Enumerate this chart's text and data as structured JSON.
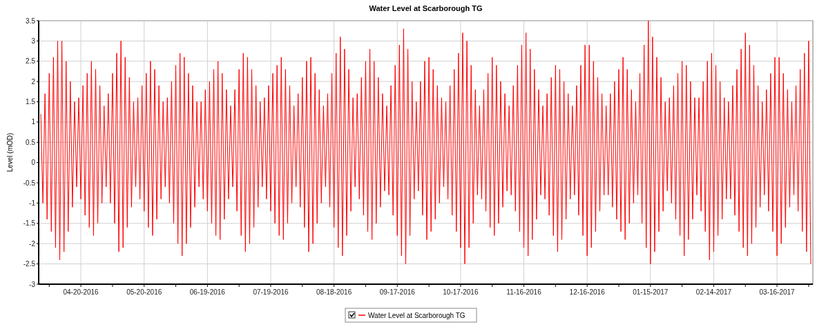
{
  "chart_data": {
    "type": "line",
    "title": "Water Level at Scarborough TG",
    "ylabel": "Level (mOD)",
    "xlim": [
      "2016-03-31",
      "2017-04-02"
    ],
    "ylim": [
      -3,
      3.5
    ],
    "yticks": [
      -3,
      -2.5,
      -2,
      -1.5,
      -1,
      -0.5,
      0,
      0.5,
      1,
      1.5,
      2,
      2.5,
      3,
      3.5
    ],
    "xticks": [
      {
        "value": "2016-04-05",
        "label": null
      },
      {
        "value": "2016-04-20",
        "label": "04-20-2016"
      },
      {
        "value": "2016-05-05",
        "label": null
      },
      {
        "value": "2016-05-20",
        "label": "05-20-2016"
      },
      {
        "value": "2016-06-04",
        "label": null
      },
      {
        "value": "2016-06-19",
        "label": "06-19-2016"
      },
      {
        "value": "2016-07-04",
        "label": null
      },
      {
        "value": "2016-07-19",
        "label": "07-19-2016"
      },
      {
        "value": "2016-08-03",
        "label": null
      },
      {
        "value": "2016-08-18",
        "label": "08-18-2016"
      },
      {
        "value": "2016-09-02",
        "label": null
      },
      {
        "value": "2016-09-17",
        "label": "09-17-2016"
      },
      {
        "value": "2016-10-02",
        "label": null
      },
      {
        "value": "2016-10-17",
        "label": "10-17-2016"
      },
      {
        "value": "2016-11-01",
        "label": null
      },
      {
        "value": "2016-11-16",
        "label": "11-16-2016"
      },
      {
        "value": "2016-12-01",
        "label": null
      },
      {
        "value": "2016-12-16",
        "label": "12-16-2016"
      },
      {
        "value": "2016-12-31",
        "label": null
      },
      {
        "value": "2017-01-15",
        "label": "01-15-2017"
      },
      {
        "value": "2017-01-30",
        "label": null
      },
      {
        "value": "2017-02-14",
        "label": "02-14-2017"
      },
      {
        "value": "2017-03-01",
        "label": null
      },
      {
        "value": "2017-03-16",
        "label": "03-16-2017"
      },
      {
        "value": "2017-03-31",
        "label": null
      }
    ],
    "grid": true,
    "legend": "bottom",
    "marker": "none",
    "line_style": "solid",
    "x": [
      "2016-04-01",
      "2016-04-02",
      "2016-04-03",
      "2016-04-04",
      "2016-04-05",
      "2016-04-06",
      "2016-04-07",
      "2016-04-08",
      "2016-04-09",
      "2016-04-10",
      "2016-04-11",
      "2016-04-12",
      "2016-04-13",
      "2016-04-14",
      "2016-04-15",
      "2016-04-16",
      "2016-04-17",
      "2016-04-18",
      "2016-04-19",
      "2016-04-20",
      "2016-04-21",
      "2016-04-22",
      "2016-04-23",
      "2016-04-24",
      "2016-04-25",
      "2016-04-26",
      "2016-04-27",
      "2016-04-28",
      "2016-04-29",
      "2016-04-30",
      "2016-05-01",
      "2016-05-02",
      "2016-05-03",
      "2016-05-04",
      "2016-05-05",
      "2016-05-06",
      "2016-05-07",
      "2016-05-08",
      "2016-05-09",
      "2016-05-10",
      "2016-05-11",
      "2016-05-12",
      "2016-05-13",
      "2016-05-14",
      "2016-05-15",
      "2016-05-16",
      "2016-05-17",
      "2016-05-18",
      "2016-05-19",
      "2016-05-20",
      "2016-05-21",
      "2016-05-22",
      "2016-05-23",
      "2016-05-24",
      "2016-05-25",
      "2016-05-26",
      "2016-05-27",
      "2016-05-28",
      "2016-05-29",
      "2016-05-30",
      "2016-05-31",
      "2016-06-01",
      "2016-06-02",
      "2016-06-03",
      "2016-06-04",
      "2016-06-05",
      "2016-06-06",
      "2016-06-07",
      "2016-06-08",
      "2016-06-09",
      "2016-06-10",
      "2016-06-11",
      "2016-06-12",
      "2016-06-13",
      "2016-06-14",
      "2016-06-15",
      "2016-06-16",
      "2016-06-17",
      "2016-06-18",
      "2016-06-19",
      "2016-06-20",
      "2016-06-21",
      "2016-06-22",
      "2016-06-23",
      "2016-06-24",
      "2016-06-25",
      "2016-06-26",
      "2016-06-27",
      "2016-06-28",
      "2016-06-29",
      "2016-06-30",
      "2016-07-01",
      "2016-07-02",
      "2016-07-03",
      "2016-07-04",
      "2016-07-05",
      "2016-07-06",
      "2016-07-07",
      "2016-07-08",
      "2016-07-09",
      "2016-07-10",
      "2016-07-11",
      "2016-07-12",
      "2016-07-13",
      "2016-07-14",
      "2016-07-15",
      "2016-07-16",
      "2016-07-17",
      "2016-07-18",
      "2016-07-19",
      "2016-07-20",
      "2016-07-21",
      "2016-07-22",
      "2016-07-23",
      "2016-07-24",
      "2016-07-25",
      "2016-07-26",
      "2016-07-27",
      "2016-07-28",
      "2016-07-29",
      "2016-07-30",
      "2016-07-31",
      "2016-08-01",
      "2016-08-02",
      "2016-08-03",
      "2016-08-04",
      "2016-08-05",
      "2016-08-06",
      "2016-08-07",
      "2016-08-08",
      "2016-08-09",
      "2016-08-10",
      "2016-08-11",
      "2016-08-12",
      "2016-08-13",
      "2016-08-14",
      "2016-08-15",
      "2016-08-16",
      "2016-08-17",
      "2016-08-18",
      "2016-08-19",
      "2016-08-20",
      "2016-08-21",
      "2016-08-22",
      "2016-08-23",
      "2016-08-24",
      "2016-08-25",
      "2016-08-26",
      "2016-08-27",
      "2016-08-28",
      "2016-08-29",
      "2016-08-30",
      "2016-08-31",
      "2016-09-01",
      "2016-09-02",
      "2016-09-03",
      "2016-09-04",
      "2016-09-05",
      "2016-09-06",
      "2016-09-07",
      "2016-09-08",
      "2016-09-09",
      "2016-09-10",
      "2016-09-11",
      "2016-09-12",
      "2016-09-13",
      "2016-09-14",
      "2016-09-15",
      "2016-09-16",
      "2016-09-17",
      "2016-09-18",
      "2016-09-19",
      "2016-09-20",
      "2016-09-21",
      "2016-09-22",
      "2016-09-23",
      "2016-09-24",
      "2016-09-25",
      "2016-09-26",
      "2016-09-27",
      "2016-09-28",
      "2016-09-29",
      "2016-09-30",
      "2016-10-01",
      "2016-10-02",
      "2016-10-03",
      "2016-10-04",
      "2016-10-05",
      "2016-10-06",
      "2016-10-07",
      "2016-10-08",
      "2016-10-09",
      "2016-10-10",
      "2016-10-11",
      "2016-10-12",
      "2016-10-13",
      "2016-10-14",
      "2016-10-15",
      "2016-10-16",
      "2016-10-17",
      "2016-10-18",
      "2016-10-19",
      "2016-10-20",
      "2016-10-21",
      "2016-10-22",
      "2016-10-23",
      "2016-10-24",
      "2016-10-25",
      "2016-10-26",
      "2016-10-27",
      "2016-10-28",
      "2016-10-29",
      "2016-10-30",
      "2016-10-31",
      "2016-11-01",
      "2016-11-02",
      "2016-11-03",
      "2016-11-04",
      "2016-11-05",
      "2016-11-06",
      "2016-11-07",
      "2016-11-08",
      "2016-11-09",
      "2016-11-10",
      "2016-11-11",
      "2016-11-12",
      "2016-11-13",
      "2016-11-14",
      "2016-11-15",
      "2016-11-16",
      "2016-11-17",
      "2016-11-18",
      "2016-11-19",
      "2016-11-20",
      "2016-11-21",
      "2016-11-22",
      "2016-11-23",
      "2016-11-24",
      "2016-11-25",
      "2016-11-26",
      "2016-11-27",
      "2016-11-28",
      "2016-11-29",
      "2016-11-30",
      "2016-12-01",
      "2016-12-02",
      "2016-12-03",
      "2016-12-04",
      "2016-12-05",
      "2016-12-06",
      "2016-12-07",
      "2016-12-08",
      "2016-12-09",
      "2016-12-10",
      "2016-12-11",
      "2016-12-12",
      "2016-12-13",
      "2016-12-14",
      "2016-12-15",
      "2016-12-16",
      "2016-12-17",
      "2016-12-18",
      "2016-12-19",
      "2016-12-20",
      "2016-12-21",
      "2016-12-22",
      "2016-12-23",
      "2016-12-24",
      "2016-12-25",
      "2016-12-26",
      "2016-12-27",
      "2016-12-28",
      "2016-12-29",
      "2016-12-30",
      "2016-12-31",
      "2017-01-01",
      "2017-01-02",
      "2017-01-03",
      "2017-01-04",
      "2017-01-05",
      "2017-01-06",
      "2017-01-07",
      "2017-01-08",
      "2017-01-09",
      "2017-01-10",
      "2017-01-11",
      "2017-01-12",
      "2017-01-13",
      "2017-01-14",
      "2017-01-15",
      "2017-01-16",
      "2017-01-17",
      "2017-01-18",
      "2017-01-19",
      "2017-01-20",
      "2017-01-21",
      "2017-01-22",
      "2017-01-23",
      "2017-01-24",
      "2017-01-25",
      "2017-01-26",
      "2017-01-27",
      "2017-01-28",
      "2017-01-29",
      "2017-01-30",
      "2017-01-31",
      "2017-02-01",
      "2017-02-02",
      "2017-02-03",
      "2017-02-04",
      "2017-02-05",
      "2017-02-06",
      "2017-02-07",
      "2017-02-08",
      "2017-02-09",
      "2017-02-10",
      "2017-02-11",
      "2017-02-12",
      "2017-02-13",
      "2017-02-14",
      "2017-02-15",
      "2017-02-16",
      "2017-02-17",
      "2017-02-18",
      "2017-02-19",
      "2017-02-20",
      "2017-02-21",
      "2017-02-22",
      "2017-02-23",
      "2017-02-24",
      "2017-02-25",
      "2017-02-26",
      "2017-02-27",
      "2017-02-28",
      "2017-03-01",
      "2017-03-02",
      "2017-03-03",
      "2017-03-04",
      "2017-03-05",
      "2017-03-06",
      "2017-03-07",
      "2017-03-08",
      "2017-03-09",
      "2017-03-10",
      "2017-03-11",
      "2017-03-12",
      "2017-03-13",
      "2017-03-14",
      "2017-03-15",
      "2017-03-16",
      "2017-03-17",
      "2017-03-18",
      "2017-03-19",
      "2017-03-20",
      "2017-03-21",
      "2017-03-22",
      "2017-03-23",
      "2017-03-24",
      "2017-03-25",
      "2017-03-26",
      "2017-03-27",
      "2017-03-28",
      "2017-03-29",
      "2017-03-30",
      "2017-03-31",
      "2017-04-01"
    ],
    "series": [
      {
        "name": "Water Level at Scarborough TG",
        "color": "#ff0000",
        "values": [
          1.2,
          -1.0,
          1.7,
          -1.4,
          2.2,
          -1.7,
          2.6,
          -2.1,
          3.0,
          -2.4,
          3.0,
          -2.2,
          2.5,
          -1.7,
          2.0,
          -1.1,
          1.5,
          -0.6,
          1.6,
          -0.9,
          1.9,
          -1.3,
          2.2,
          -1.6,
          2.5,
          -1.8,
          2.3,
          -1.5,
          1.9,
          -1.0,
          1.4,
          -0.6,
          1.7,
          -1.0,
          2.2,
          -1.5,
          2.7,
          -2.2,
          3.0,
          -2.1,
          2.6,
          -1.6,
          2.1,
          -1.1,
          1.5,
          -0.6,
          1.6,
          -0.9,
          1.9,
          -1.2,
          2.2,
          -1.6,
          2.5,
          -1.8,
          2.3,
          -1.4,
          1.9,
          -0.9,
          1.5,
          -0.6,
          1.6,
          -1.0,
          2.0,
          -1.5,
          2.4,
          -2.0,
          2.7,
          -2.3,
          2.6,
          -2.0,
          2.2,
          -1.6,
          1.9,
          -1.1,
          1.5,
          -0.6,
          1.5,
          -0.9,
          1.8,
          -1.2,
          2.0,
          -1.5,
          2.3,
          -1.8,
          2.5,
          -1.9,
          2.2,
          -1.4,
          1.8,
          -0.9,
          1.4,
          -0.6,
          1.8,
          -1.2,
          2.3,
          -1.8,
          2.7,
          -2.2,
          2.6,
          -2.0,
          2.3,
          -1.6,
          1.9,
          -1.1,
          1.5,
          -0.6,
          1.6,
          -0.9,
          1.9,
          -1.2,
          2.2,
          -1.5,
          2.4,
          -1.8,
          2.6,
          -1.9,
          2.3,
          -1.5,
          1.9,
          -1.0,
          1.4,
          -0.6,
          1.7,
          -1.1,
          2.1,
          -1.6,
          2.5,
          -2.2,
          2.6,
          -2.0,
          2.2,
          -1.5,
          1.8,
          -1.0,
          1.4,
          -0.6,
          1.7,
          -1.1,
          2.2,
          -1.6,
          2.7,
          -2.1,
          3.1,
          -2.3,
          2.8,
          -1.8,
          2.3,
          -1.2,
          1.6,
          -0.6,
          1.7,
          -0.9,
          2.1,
          -1.3,
          2.5,
          -1.7,
          2.8,
          -1.9,
          2.5,
          -1.5,
          2.1,
          -1.1,
          1.7,
          -0.7,
          1.4,
          -0.8,
          1.9,
          -1.3,
          2.4,
          -1.8,
          2.9,
          -2.3,
          3.3,
          -2.5,
          2.8,
          -1.8,
          2.0,
          -0.9,
          1.5,
          -0.7,
          2.0,
          -1.3,
          2.5,
          -1.9,
          2.6,
          -1.7,
          2.3,
          -1.4,
          1.9,
          -1.0,
          1.6,
          -0.6,
          1.5,
          -0.9,
          1.9,
          -1.3,
          2.3,
          -1.7,
          2.7,
          -2.1,
          3.2,
          -2.5,
          3.0,
          -2.1,
          2.4,
          -1.5,
          1.8,
          -0.8,
          1.4,
          -0.9,
          1.8,
          -1.2,
          2.2,
          -1.6,
          2.6,
          -1.8,
          2.4,
          -1.5,
          2.0,
          -1.1,
          1.7,
          -0.7,
          1.4,
          -0.8,
          1.9,
          -1.2,
          2.4,
          -1.7,
          2.9,
          -2.1,
          3.2,
          -2.3,
          2.8,
          -1.9,
          2.3,
          -1.4,
          1.8,
          -0.8,
          1.4,
          -0.9,
          1.7,
          -1.3,
          2.1,
          -1.8,
          2.4,
          -2.2,
          2.3,
          -1.9,
          2.0,
          -1.4,
          1.7,
          -0.9,
          1.4,
          -0.8,
          1.9,
          -1.3,
          2.4,
          -1.8,
          2.9,
          -2.3,
          2.9,
          -2.1,
          2.5,
          -1.7,
          2.1,
          -1.2,
          1.7,
          -0.8,
          1.4,
          -0.8,
          1.7,
          -1.1,
          2.0,
          -1.4,
          2.3,
          -1.7,
          2.6,
          -1.9,
          2.3,
          -1.5,
          1.8,
          -1.0,
          1.5,
          -0.8,
          2.2,
          -1.5,
          2.9,
          -2.1,
          3.5,
          -2.5,
          3.1,
          -2.2,
          2.6,
          -1.7,
          2.1,
          -1.2,
          1.5,
          -0.7,
          1.6,
          -1.0,
          1.9,
          -1.4,
          2.2,
          -1.8,
          2.5,
          -2.3,
          2.4,
          -1.9,
          2.0,
          -1.4,
          1.6,
          -0.8,
          1.6,
          -1.2,
          2.0,
          -1.7,
          2.5,
          -2.4,
          2.7,
          -2.2,
          2.4,
          -1.8,
          2.0,
          -1.4,
          1.6,
          -0.9,
          1.5,
          -0.9,
          1.9,
          -1.3,
          2.3,
          -1.7,
          2.8,
          -2.1,
          3.2,
          -2.3,
          2.9,
          -2.0,
          2.4,
          -1.6,
          1.9,
          -1.1,
          1.5,
          -0.8,
          1.8,
          -1.2,
          2.2,
          -1.7,
          2.6,
          -2.3,
          2.6,
          -2.0,
          2.2,
          -1.6,
          1.8,
          -1.1,
          1.5,
          -0.8,
          1.9,
          -1.2,
          2.3,
          -1.7,
          2.7,
          -2.2,
          3.0,
          -2.5
        ]
      }
    ]
  }
}
